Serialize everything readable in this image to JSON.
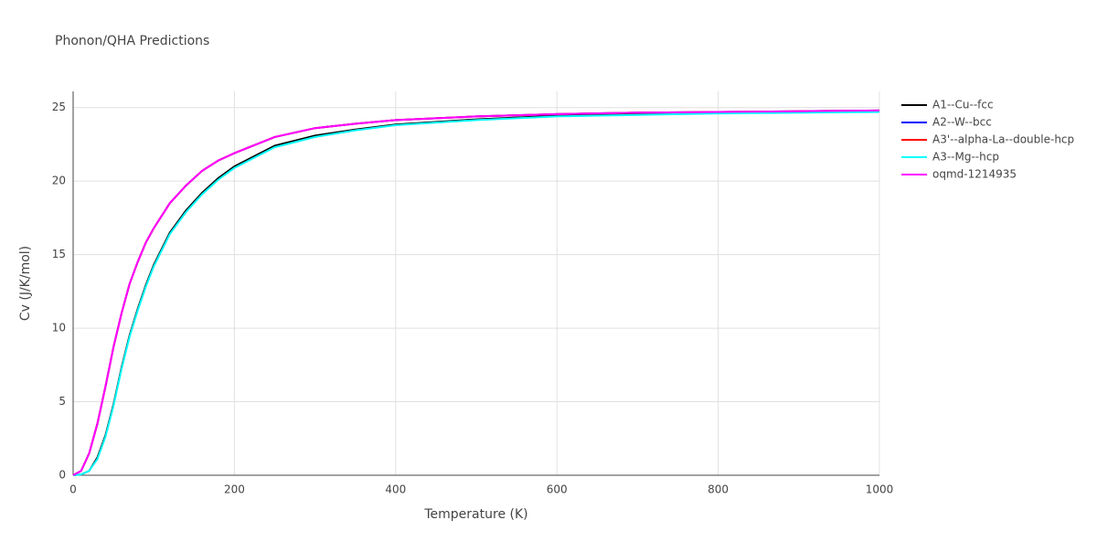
{
  "chart_data": {
    "type": "line",
    "title": "Phonon/QHA Predictions",
    "x_label": "Temperature (K)",
    "y_label": "Cv (J/K/mol)",
    "x": [
      0,
      10,
      20,
      30,
      40,
      50,
      60,
      70,
      80,
      90,
      100,
      120,
      140,
      160,
      180,
      200,
      250,
      300,
      350,
      400,
      500,
      600,
      700,
      800,
      900,
      1000
    ],
    "series": [
      {
        "name": "A1--Cu--fcc",
        "color": "#000000",
        "values": [
          0,
          0.05,
          0.3,
          1.2,
          2.7,
          4.8,
          7.3,
          9.5,
          11.3,
          12.9,
          14.3,
          16.5,
          18.0,
          19.2,
          20.2,
          21.0,
          22.4,
          23.1,
          23.5,
          23.85,
          24.2,
          24.45,
          24.55,
          24.65,
          24.7,
          24.75
        ]
      },
      {
        "name": "A2--W--bcc",
        "color": "#0000ff",
        "values": [
          0,
          0.3,
          1.5,
          3.5,
          6.0,
          8.7,
          11.0,
          13.0,
          14.5,
          15.8,
          16.8,
          18.5,
          19.7,
          20.7,
          21.4,
          21.9,
          23.0,
          23.6,
          23.9,
          24.15,
          24.4,
          24.55,
          24.65,
          24.7,
          24.75,
          24.8
        ]
      },
      {
        "name": "A3'--alpha-La--double-hcp",
        "color": "#ff0000",
        "values": [
          0,
          0.3,
          1.5,
          3.5,
          6.0,
          8.7,
          11.0,
          13.0,
          14.5,
          15.8,
          16.8,
          18.5,
          19.7,
          20.7,
          21.4,
          21.9,
          23.0,
          23.6,
          23.9,
          24.15,
          24.4,
          24.55,
          24.65,
          24.7,
          24.75,
          24.8
        ]
      },
      {
        "name": "A3--Mg--hcp",
        "color": "#00ffff",
        "values": [
          0,
          0.05,
          0.3,
          1.1,
          2.6,
          4.7,
          7.2,
          9.4,
          11.2,
          12.8,
          14.2,
          16.4,
          17.9,
          19.1,
          20.1,
          20.9,
          22.3,
          23.0,
          23.45,
          23.8,
          24.15,
          24.4,
          24.5,
          24.6,
          24.65,
          24.7
        ]
      },
      {
        "name": "oqmd-1214935",
        "color": "#ff00ff",
        "values": [
          0,
          0.3,
          1.5,
          3.5,
          6.0,
          8.7,
          11.0,
          13.0,
          14.5,
          15.8,
          16.8,
          18.5,
          19.7,
          20.7,
          21.4,
          21.9,
          23.0,
          23.6,
          23.9,
          24.15,
          24.4,
          24.55,
          24.65,
          24.7,
          24.75,
          24.8
        ]
      }
    ],
    "xlim": [
      0,
      1000
    ],
    "xticks": [
      0,
      200,
      400,
      600,
      800,
      1000
    ],
    "ylim": [
      0,
      26.1
    ],
    "yticks": [
      0,
      5,
      10,
      15,
      20,
      25
    ],
    "grid": true
  }
}
